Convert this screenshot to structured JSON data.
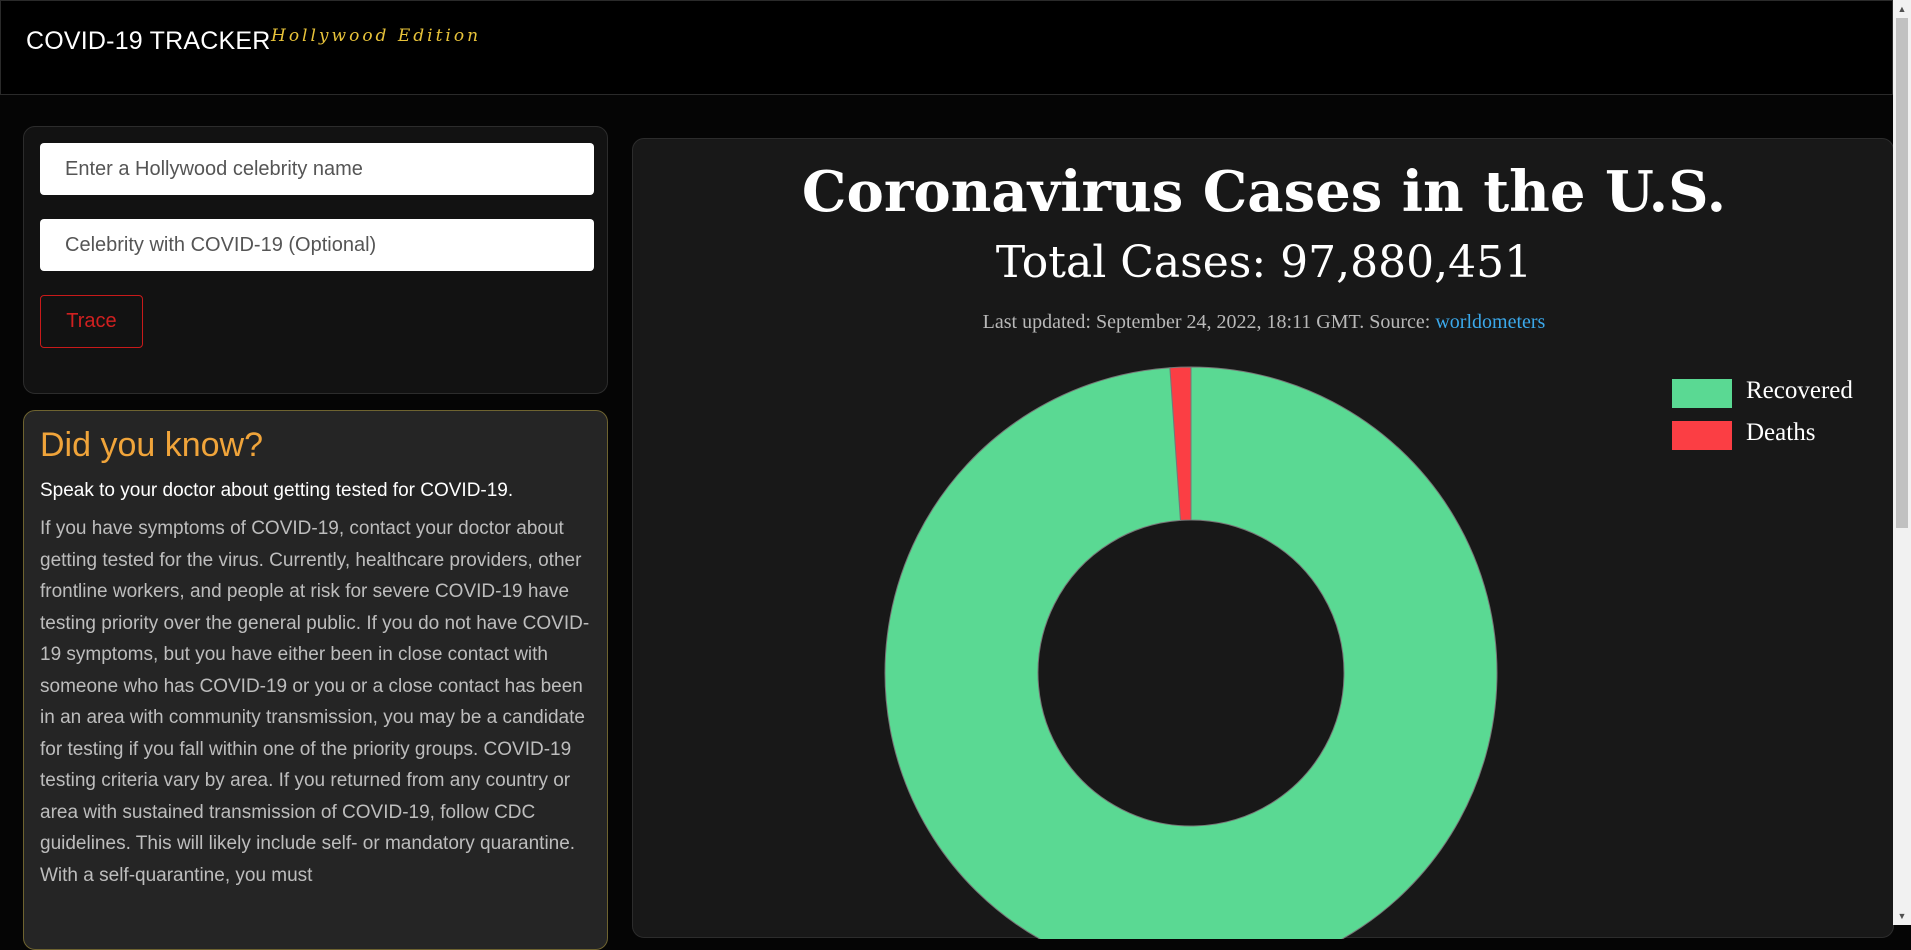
{
  "header": {
    "brand": "COVID-19 TRACKER",
    "edition": "Hollywood Edition"
  },
  "search": {
    "celebrity_placeholder": "Enter a Hollywood celebrity name",
    "covid_celebrity_placeholder": "Celebrity with COVID-19 (Optional)",
    "trace_label": "Trace"
  },
  "info": {
    "title": "Did you know?",
    "subtitle": "Speak to your doctor about getting tested for COVID-19.",
    "body": "If you have symptoms of COVID-19, contact your doctor about getting tested for the virus. Currently, healthcare providers, other frontline workers, and people at risk for severe COVID-19 have testing priority over the general public. If you do not have COVID-19 symptoms, but you have either been in close contact with someone who has COVID-19 or you or a close contact has been in an area with community transmission, you may be a candidate for testing if you fall within one of the priority groups. COVID-19 testing criteria vary by area. If you returned from any country or area with sustained transmission of COVID-19, follow CDC guidelines. This will likely include self- or mandatory quarantine. With a self-quarantine, you must"
  },
  "main": {
    "title": "Coronavirus Cases in the U.S.",
    "total_label": "Total Cases: 97,880,451",
    "updated_text": "Last updated: September 24, 2022, 18:11 GMT. Source: ",
    "source_link": "worldometers"
  },
  "chart_data": {
    "type": "pie",
    "variant": "doughnut",
    "series": [
      {
        "name": "Recovered",
        "value": 98.9,
        "color": "#5ad993"
      },
      {
        "name": "Deaths",
        "value": 1.1,
        "color": "#fb3e44"
      }
    ],
    "value_unit": "percent (estimated)",
    "legend_position": "top-right"
  },
  "colors": {
    "background": "#050505",
    "accent_gold": "#e8c33a",
    "info_title": "#f0a43a",
    "trace_red": "#d02020",
    "link": "#3ba8ea"
  }
}
